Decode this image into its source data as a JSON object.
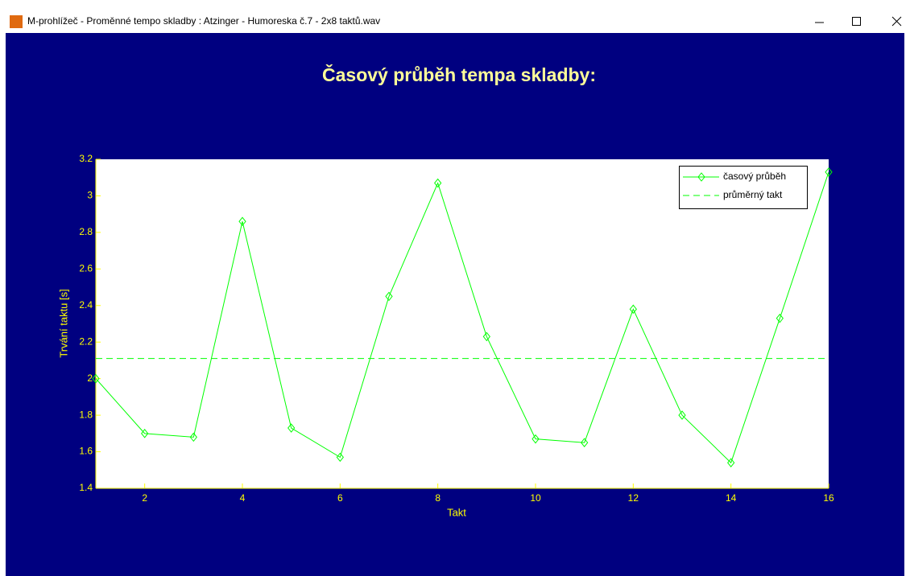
{
  "window": {
    "title": "M-prohlížeč - Proměnné tempo skladby :  Atzinger - Humoreska č.7 - 2x8 taktů.wav"
  },
  "chart_data": {
    "type": "line",
    "title": "Časový průběh tempa skladby:",
    "xlabel": "Takt",
    "ylabel": "Trvání taktu [s]",
    "x": [
      1,
      2,
      3,
      4,
      5,
      6,
      7,
      8,
      9,
      10,
      11,
      12,
      13,
      14,
      15,
      16
    ],
    "series": [
      {
        "name": "časový průběh",
        "color": "#00ff00",
        "marker": "diamond",
        "style": "solid",
        "values": [
          2.0,
          1.7,
          1.68,
          2.86,
          1.73,
          1.57,
          2.45,
          3.07,
          2.23,
          1.67,
          1.65,
          2.38,
          1.8,
          1.54,
          2.33,
          3.13
        ]
      },
      {
        "name": "průměrný takt",
        "color": "#00ff00",
        "style": "dashed",
        "values": [
          2.11,
          2.11,
          2.11,
          2.11,
          2.11,
          2.11,
          2.11,
          2.11,
          2.11,
          2.11,
          2.11,
          2.11,
          2.11,
          2.11,
          2.11,
          2.11
        ]
      }
    ],
    "xlim": [
      1,
      16
    ],
    "xticks": [
      2,
      4,
      6,
      8,
      10,
      12,
      14,
      16
    ],
    "ylim": [
      1.4,
      3.2
    ],
    "yticks": [
      1.4,
      1.6,
      1.8,
      2,
      2.2,
      2.4,
      2.6,
      2.8,
      3,
      3.2
    ],
    "grid": false,
    "legend": "upper right"
  }
}
